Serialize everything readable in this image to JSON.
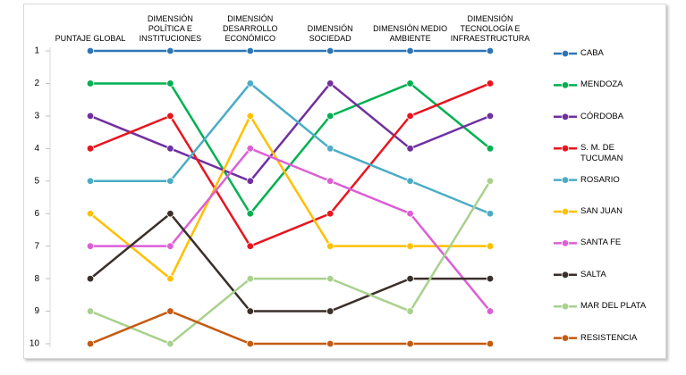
{
  "chart_data": {
    "type": "line",
    "categories": [
      "PUNTAJE GLOBAL",
      "DIMENSIÓN\nPOLÍTICA E\nINSTITUCIONES",
      "DIMENSIÓN\nDESARROLLO\nECONÓMICO",
      "DIMENSIÓN\nSOCIEDAD",
      "DIMENSIÓN MEDIO\nAMBIENTE",
      "DIMENSIÓN\nTECNOLOGÍA E\nINFRAESTRUCTURA"
    ],
    "ylim": [
      10,
      1
    ],
    "yticks": [
      1,
      2,
      3,
      4,
      5,
      6,
      7,
      8,
      9,
      10
    ],
    "series": [
      {
        "name": "CABA",
        "color": "#2e75b6",
        "values": [
          1,
          1,
          1,
          1,
          1,
          1
        ]
      },
      {
        "name": "MENDOZA",
        "color": "#00b050",
        "values": [
          2,
          2,
          6,
          3,
          2,
          4
        ]
      },
      {
        "name": "CÓRDOBA",
        "color": "#7030a0",
        "values": [
          3,
          4,
          5,
          2,
          4,
          3
        ]
      },
      {
        "name": "S. M.  DE\nTUCUMAN",
        "color": "#e8141e",
        "values": [
          4,
          3,
          7,
          6,
          3,
          2
        ]
      },
      {
        "name": "ROSARIO",
        "color": "#4bacc6",
        "values": [
          5,
          5,
          2,
          4,
          5,
          6
        ]
      },
      {
        "name": "SAN JUAN",
        "color": "#ffc000",
        "values": [
          6,
          8,
          3,
          7,
          7,
          7
        ]
      },
      {
        "name": "SANTA FE",
        "color": "#dd5fd6",
        "values": [
          7,
          7,
          4,
          5,
          6,
          9
        ]
      },
      {
        "name": "SALTA",
        "color": "#3b2f2a",
        "values": [
          8,
          6,
          9,
          9,
          8,
          8
        ]
      },
      {
        "name": "MAR DEL PLATA",
        "color": "#a9d18e",
        "values": [
          9,
          10,
          8,
          8,
          9,
          5
        ]
      },
      {
        "name": "RESISTENCIA",
        "color": "#c55a11",
        "values": [
          10,
          9,
          10,
          10,
          10,
          10
        ]
      }
    ]
  }
}
